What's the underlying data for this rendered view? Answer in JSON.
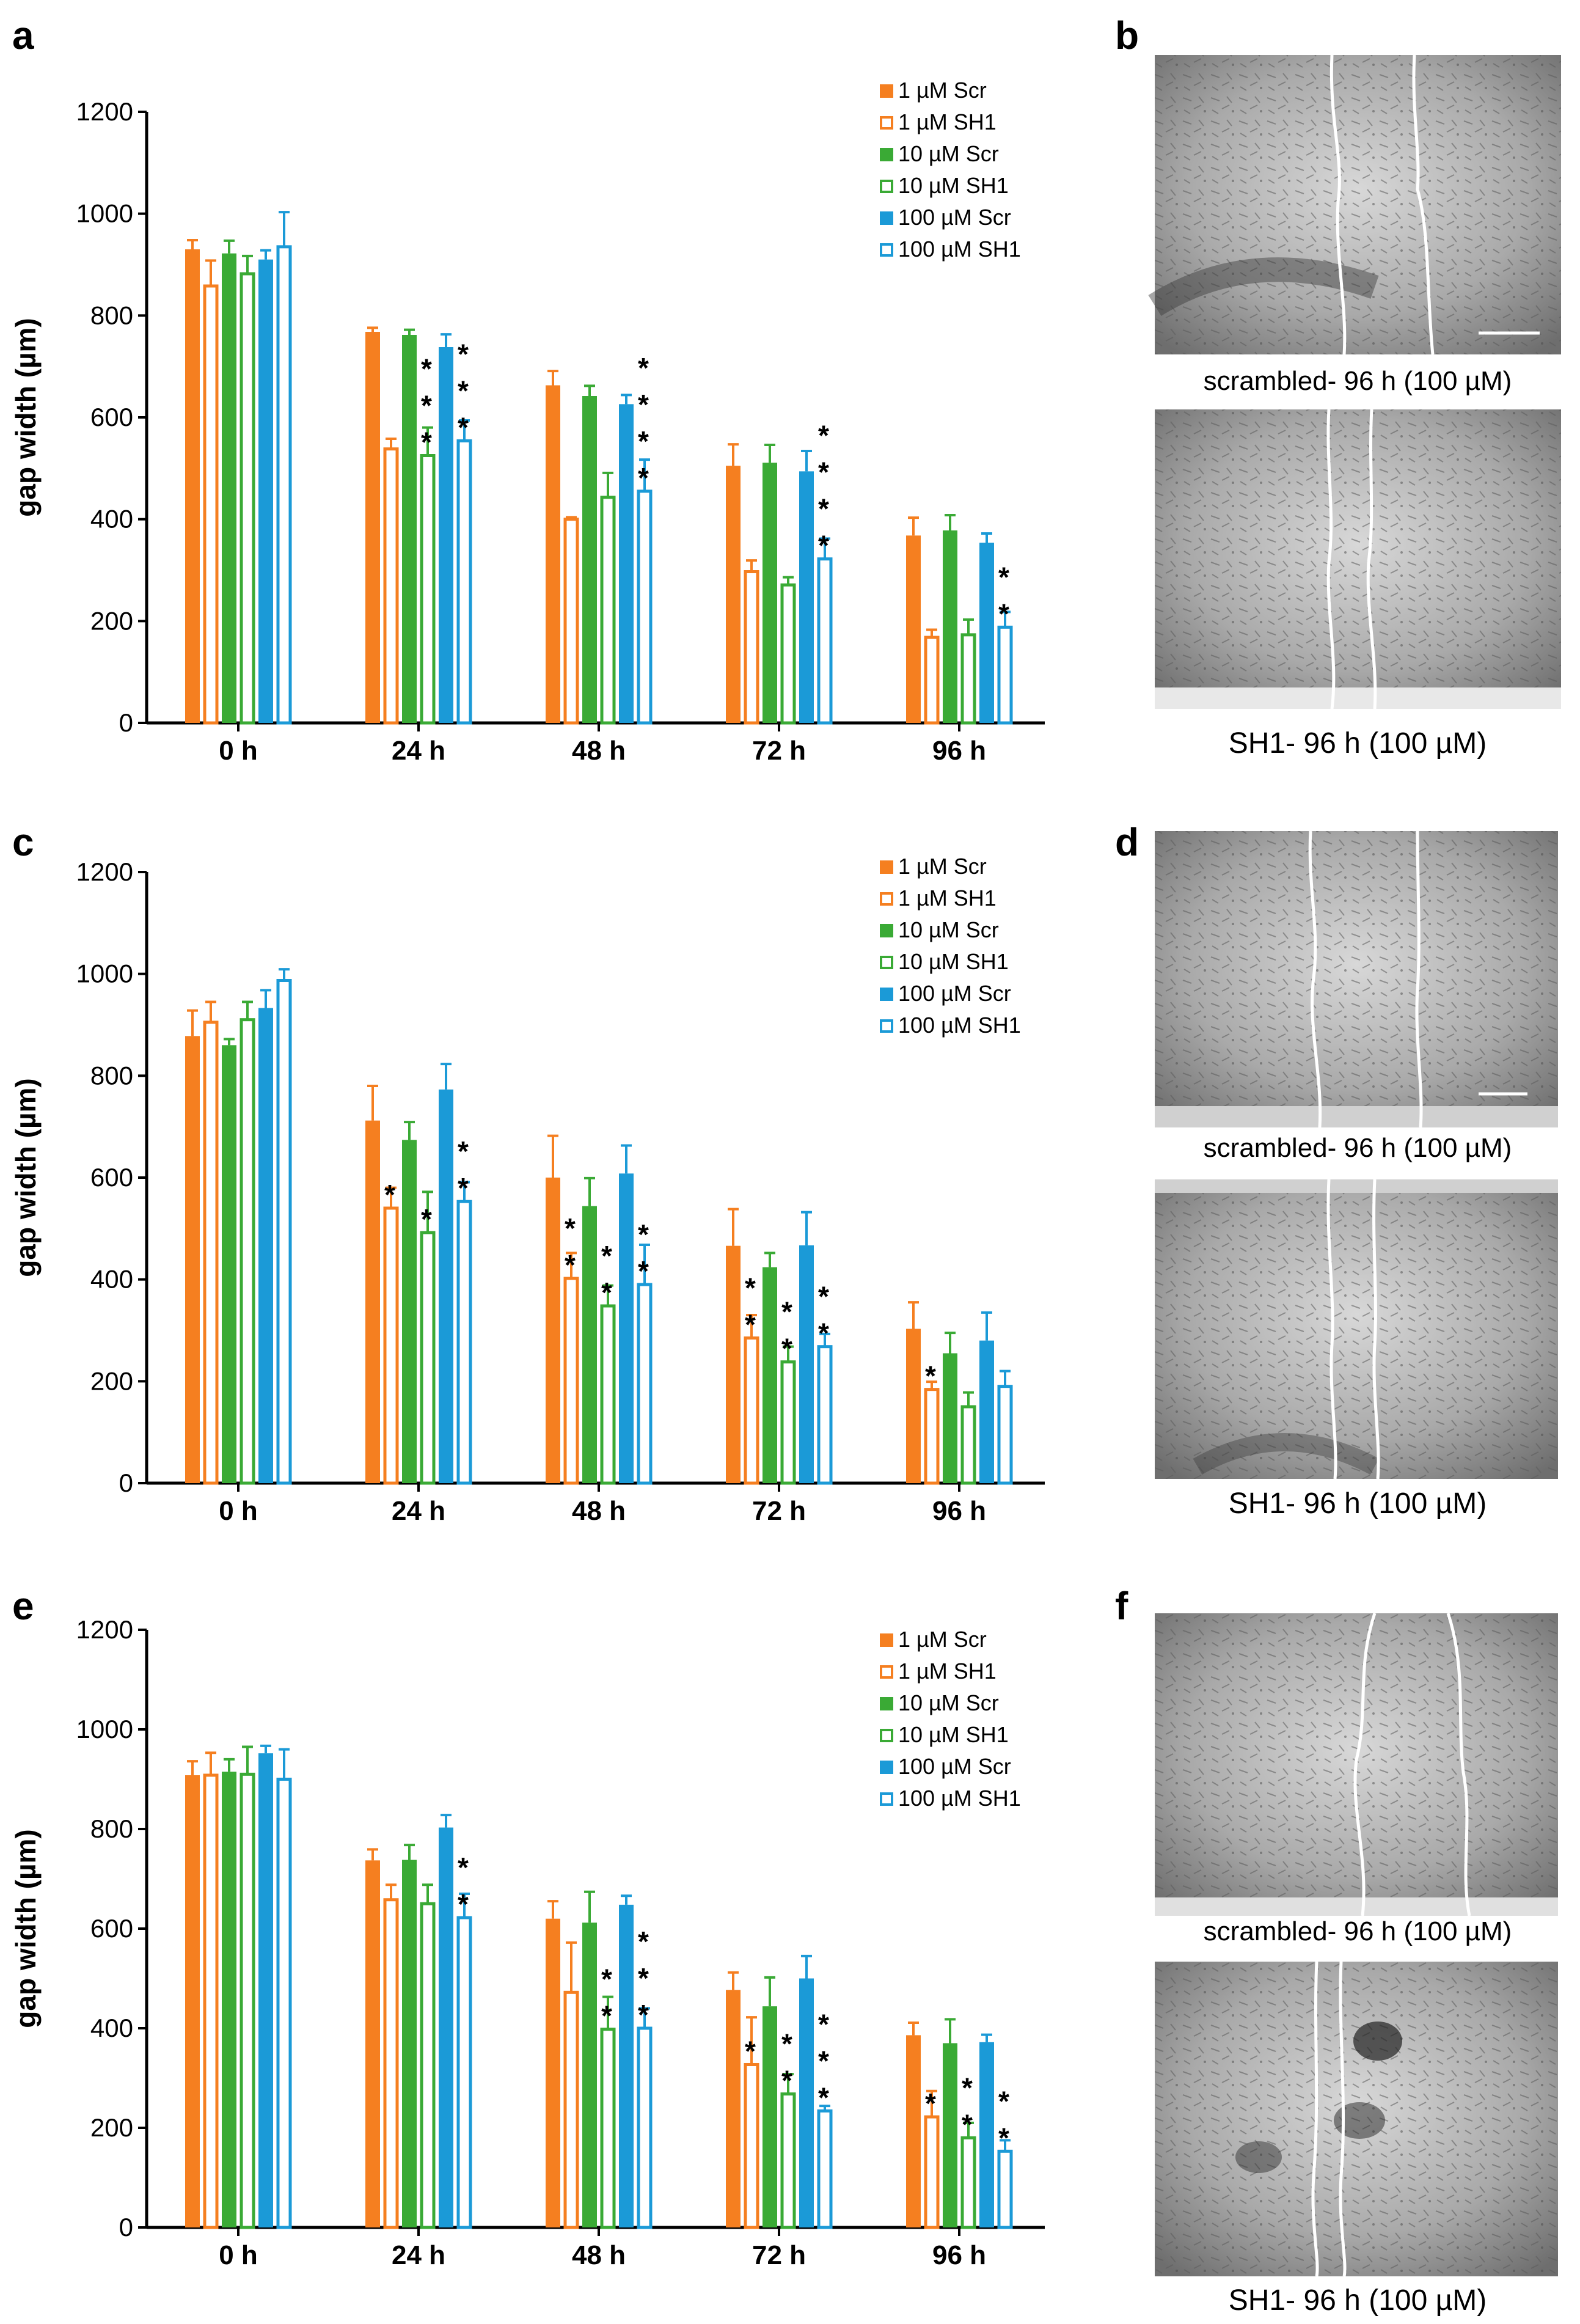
{
  "colors": {
    "scr1": "#f57f20",
    "scr10": "#3aaa35",
    "scr100": "#1b9ad7"
  },
  "chart_data": [
    {
      "panel": "a",
      "type": "bar",
      "ylabel": "gap width (µm)",
      "ylim": [
        0,
        1200
      ],
      "yticks": [
        "0",
        "200",
        "400",
        "600",
        "800",
        "1000",
        "1200"
      ],
      "categories": [
        "0 h",
        "24 h",
        "48 h",
        "72 h",
        "96 h"
      ],
      "legend": [
        "1 µM Scr",
        "1 µM SH1",
        "10 µM Scr",
        "10 µM SH1",
        "100 µM Scr",
        "100 µM SH1"
      ],
      "legend_position": "top-right",
      "series": [
        {
          "name": "1 µM Scr",
          "values": [
            930,
            768,
            663,
            505,
            368
          ],
          "err": [
            18,
            8,
            28,
            42,
            35
          ]
        },
        {
          "name": "1 µM SH1",
          "values": [
            858,
            538,
            400,
            297,
            168
          ],
          "err": [
            50,
            20,
            4,
            22,
            15
          ]
        },
        {
          "name": "10 µM Scr",
          "values": [
            922,
            762,
            642,
            511,
            378
          ],
          "err": [
            25,
            10,
            20,
            35,
            30
          ]
        },
        {
          "name": "10 µM SH1",
          "values": [
            882,
            525,
            443,
            271,
            173
          ],
          "err": [
            35,
            55,
            48,
            15,
            30
          ]
        },
        {
          "name": "100 µM Scr",
          "values": [
            910,
            738,
            626,
            494,
            354
          ],
          "err": [
            18,
            25,
            18,
            40,
            18
          ]
        },
        {
          "name": "100 µM SH1",
          "values": [
            935,
            554,
            455,
            322,
            188
          ],
          "err": [
            68,
            40,
            62,
            40,
            30
          ]
        }
      ],
      "significance": [
        [
          "",
          "",
          "",
          "",
          ""
        ],
        [
          "",
          "***",
          "",
          "",
          ""
        ],
        [
          "",
          "***",
          "****",
          "****",
          "**"
        ]
      ]
    },
    {
      "panel": "c",
      "type": "bar",
      "ylabel": "gap width (µm)",
      "ylim": [
        0,
        1200
      ],
      "yticks": [
        "0",
        "200",
        "400",
        "600",
        "800",
        "1000",
        "1200"
      ],
      "categories": [
        "0 h",
        "24 h",
        "48 h",
        "72 h",
        "96 h"
      ],
      "legend": [
        "1 µM Scr",
        "1 µM SH1",
        "10 µM Scr",
        "10 µM SH1",
        "100 µM Scr",
        "100 µM SH1"
      ],
      "legend_position": "top-right",
      "series": [
        {
          "name": "1 µM Scr",
          "values": [
            878,
            712,
            600,
            466,
            303
          ],
          "err": [
            50,
            68,
            82,
            72,
            52
          ]
        },
        {
          "name": "1 µM SH1",
          "values": [
            905,
            540,
            402,
            285,
            184
          ],
          "err": [
            40,
            40,
            50,
            45,
            15
          ]
        },
        {
          "name": "10 µM Scr",
          "values": [
            860,
            674,
            544,
            424,
            255
          ],
          "err": [
            12,
            35,
            55,
            28,
            40
          ]
        },
        {
          "name": "10 µM SH1",
          "values": [
            910,
            492,
            348,
            238,
            150
          ],
          "err": [
            35,
            80,
            40,
            30,
            28
          ]
        },
        {
          "name": "100 µM Scr",
          "values": [
            933,
            773,
            608,
            467,
            280
          ],
          "err": [
            35,
            50,
            55,
            65,
            55
          ]
        },
        {
          "name": "100 µM SH1",
          "values": [
            987,
            553,
            390,
            268,
            190
          ],
          "err": [
            22,
            38,
            78,
            25,
            30
          ]
        }
      ],
      "significance": [
        [
          "",
          "*",
          "**",
          "**",
          "*"
        ],
        [
          "",
          "*",
          "**",
          "**",
          ""
        ],
        [
          "",
          "**",
          "**",
          "**",
          ""
        ]
      ]
    },
    {
      "panel": "e",
      "type": "bar",
      "ylabel": "gap width (µm)",
      "ylim": [
        0,
        1200
      ],
      "yticks": [
        "0",
        "200",
        "400",
        "600",
        "800",
        "1000",
        "1200"
      ],
      "categories": [
        "0 h",
        "24 h",
        "48 h",
        "72 h",
        "96 h"
      ],
      "legend": [
        "1 µM Scr",
        "1 µM SH1",
        "10 µM Scr",
        "10 µM SH1",
        "100 µM Scr",
        "100 µM SH1"
      ],
      "legend_position": "top-right",
      "series": [
        {
          "name": "1 µM Scr",
          "values": [
            908,
            737,
            620,
            477,
            386
          ],
          "err": [
            28,
            22,
            35,
            35,
            25
          ]
        },
        {
          "name": "1 µM SH1",
          "values": [
            908,
            658,
            472,
            327,
            222
          ],
          "err": [
            45,
            30,
            100,
            95,
            52
          ]
        },
        {
          "name": "10 µM Scr",
          "values": [
            915,
            738,
            612,
            444,
            370
          ],
          "err": [
            25,
            30,
            62,
            58,
            48
          ]
        },
        {
          "name": "10 µM SH1",
          "values": [
            910,
            650,
            398,
            268,
            180
          ],
          "err": [
            55,
            38,
            65,
            40,
            30
          ]
        },
        {
          "name": "100 µM Scr",
          "values": [
            952,
            803,
            648,
            500,
            372
          ],
          "err": [
            15,
            25,
            18,
            45,
            15
          ]
        },
        {
          "name": "100 µM SH1",
          "values": [
            900,
            622,
            400,
            234,
            153
          ],
          "err": [
            60,
            48,
            40,
            10,
            22
          ]
        }
      ],
      "significance": [
        [
          "",
          "",
          "",
          "*",
          "*"
        ],
        [
          "",
          "",
          "**",
          "**",
          "**"
        ],
        [
          "",
          "**",
          "***",
          "***",
          "**"
        ]
      ]
    }
  ],
  "panels": {
    "a": {
      "letter": "a"
    },
    "b": {
      "letter": "b",
      "caption_top": "scrambled- 96 h (100 µM)",
      "caption_bottom": "SH1- 96 h (100 µM)"
    },
    "c": {
      "letter": "c"
    },
    "d": {
      "letter": "d",
      "caption_top": "scrambled- 96 h (100 µM)",
      "caption_bottom": "SH1- 96 h (100 µM)"
    },
    "e": {
      "letter": "e"
    },
    "f": {
      "letter": "f",
      "caption_top": "scrambled- 96 h (100 µM)",
      "caption_bottom": "SH1- 96 h (100 µM)"
    }
  }
}
